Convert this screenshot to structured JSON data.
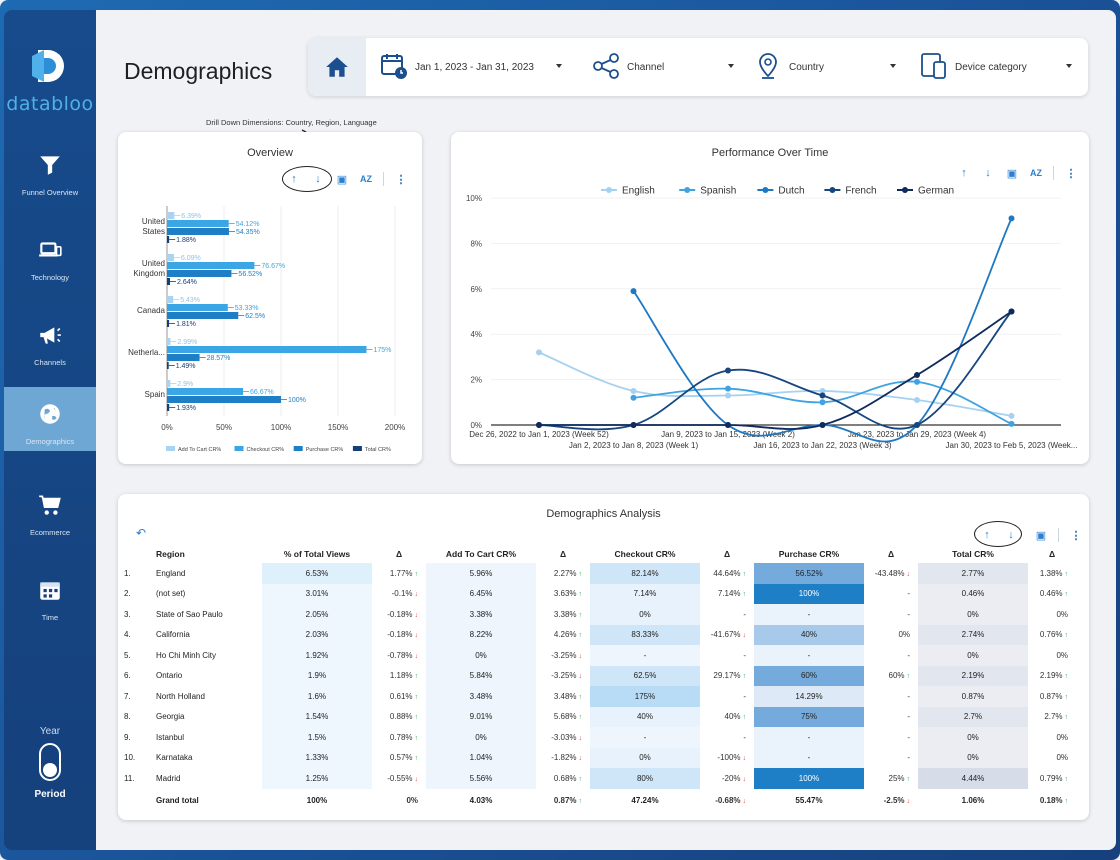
{
  "brand": {
    "name": "databloo",
    "accent": "#4fb0ea"
  },
  "sidebar": {
    "items": [
      {
        "label": "Funnel Overview",
        "icon": "funnel-icon"
      },
      {
        "label": "Technology",
        "icon": "laptop-icon"
      },
      {
        "label": "Channels",
        "icon": "megaphone-icon"
      },
      {
        "label": "Demographics",
        "icon": "globe-icon",
        "active": true
      },
      {
        "label": "Ecommerce",
        "icon": "cart-icon"
      },
      {
        "label": "Time",
        "icon": "calendar-icon"
      }
    ],
    "year_label": "Year",
    "period_label": "Period"
  },
  "header": {
    "title": "Demographics"
  },
  "filters": {
    "date": "Jan 1, 2023 - Jan 31, 2023",
    "channel": "Channel",
    "country": "Country",
    "device": "Device category"
  },
  "overview": {
    "title": "Overview",
    "note": "Drill Down Dimensions: Country, Region, Language"
  },
  "performance": {
    "title": "Performance Over Time"
  },
  "analysis": {
    "title": "Demographics Analysis",
    "columns": [
      "Region",
      "% of Total Views",
      "Δ",
      "Add To Cart CR%",
      "Δ",
      "Checkout CR%",
      "Δ",
      "Purchase CR%",
      "Δ",
      "Total CR%",
      "Δ"
    ],
    "rows": [
      {
        "n": "1.",
        "region": "England",
        "views": "6.53%",
        "d1": "1.77%",
        "d1s": "up",
        "atc": "5.96%",
        "d2": "2.27%",
        "d2s": "up",
        "co": "82.14%",
        "d3": "44.64%",
        "d3s": "up",
        "pu": "56.52%",
        "d4": "-43.48%",
        "d4s": "down",
        "tot": "2.77%",
        "d5": "1.38%",
        "d5s": "up"
      },
      {
        "n": "2.",
        "region": "(not set)",
        "views": "3.01%",
        "d1": "-0.1%",
        "d1s": "down",
        "atc": "6.45%",
        "d2": "3.63%",
        "d2s": "up",
        "co": "7.14%",
        "d3": "7.14%",
        "d3s": "up",
        "pu": "100%",
        "d4": "-",
        "d4s": "",
        "tot": "0.46%",
        "d5": "0.46%",
        "d5s": "up"
      },
      {
        "n": "3.",
        "region": "State of Sao Paulo",
        "views": "2.05%",
        "d1": "-0.18%",
        "d1s": "down",
        "atc": "3.38%",
        "d2": "3.38%",
        "d2s": "up",
        "co": "0%",
        "d3": "-",
        "d3s": "",
        "pu": "-",
        "d4": "-",
        "d4s": "",
        "tot": "0%",
        "d5": "0%",
        "d5s": ""
      },
      {
        "n": "4.",
        "region": "California",
        "views": "2.03%",
        "d1": "-0.18%",
        "d1s": "down",
        "atc": "8.22%",
        "d2": "4.26%",
        "d2s": "up",
        "co": "83.33%",
        "d3": "-41.67%",
        "d3s": "down",
        "pu": "40%",
        "d4": "0%",
        "d4s": "",
        "tot": "2.74%",
        "d5": "0.76%",
        "d5s": "up"
      },
      {
        "n": "5.",
        "region": "Ho Chi Minh City",
        "views": "1.92%",
        "d1": "-0.78%",
        "d1s": "down",
        "atc": "0%",
        "d2": "-3.25%",
        "d2s": "down",
        "co": "-",
        "d3": "-",
        "d3s": "",
        "pu": "-",
        "d4": "-",
        "d4s": "",
        "tot": "0%",
        "d5": "0%",
        "d5s": ""
      },
      {
        "n": "6.",
        "region": "Ontario",
        "views": "1.9%",
        "d1": "1.18%",
        "d1s": "up",
        "atc": "5.84%",
        "d2": "-3.25%",
        "d2s": "down",
        "co": "62.5%",
        "d3": "29.17%",
        "d3s": "up",
        "pu": "60%",
        "d4": "60%",
        "d4s": "up",
        "tot": "2.19%",
        "d5": "2.19%",
        "d5s": "up"
      },
      {
        "n": "7.",
        "region": "North Holland",
        "views": "1.6%",
        "d1": "0.61%",
        "d1s": "up",
        "atc": "3.48%",
        "d2": "3.48%",
        "d2s": "up",
        "co": "175%",
        "d3": "-",
        "d3s": "",
        "pu": "14.29%",
        "d4": "-",
        "d4s": "",
        "tot": "0.87%",
        "d5": "0.87%",
        "d5s": "up"
      },
      {
        "n": "8.",
        "region": "Georgia",
        "views": "1.54%",
        "d1": "0.88%",
        "d1s": "up",
        "atc": "9.01%",
        "d2": "5.68%",
        "d2s": "up",
        "co": "40%",
        "d3": "40%",
        "d3s": "up",
        "pu": "75%",
        "d4": "-",
        "d4s": "",
        "tot": "2.7%",
        "d5": "2.7%",
        "d5s": "up"
      },
      {
        "n": "9.",
        "region": "Istanbul",
        "views": "1.5%",
        "d1": "0.78%",
        "d1s": "up",
        "atc": "0%",
        "d2": "-3.03%",
        "d2s": "down",
        "co": "-",
        "d3": "-",
        "d3s": "",
        "pu": "-",
        "d4": "-",
        "d4s": "",
        "tot": "0%",
        "d5": "0%",
        "d5s": ""
      },
      {
        "n": "10.",
        "region": "Karnataka",
        "views": "1.33%",
        "d1": "0.57%",
        "d1s": "up",
        "atc": "1.04%",
        "d2": "-1.82%",
        "d2s": "down",
        "co": "0%",
        "d3": "-100%",
        "d3s": "down",
        "pu": "-",
        "d4": "-",
        "d4s": "",
        "tot": "0%",
        "d5": "0%",
        "d5s": ""
      },
      {
        "n": "11.",
        "region": "Madrid",
        "views": "1.25%",
        "d1": "-0.55%",
        "d1s": "down",
        "atc": "5.56%",
        "d2": "0.68%",
        "d2s": "up",
        "co": "80%",
        "d3": "-20%",
        "d3s": "down",
        "pu": "100%",
        "d4": "25%",
        "d4s": "up",
        "tot": "4.44%",
        "d5": "0.79%",
        "d5s": "up"
      }
    ],
    "grand_total": {
      "label": "Grand total",
      "views": "100%",
      "d1": "0%",
      "atc": "4.03%",
      "d2": "0.87%",
      "d2s": "up",
      "co": "47.24%",
      "d3": "-0.68%",
      "d3s": "down",
      "pu": "55.47%",
      "d4": "-2.5%",
      "d4s": "down",
      "tot": "1.06%",
      "d5": "0.18%",
      "d5s": "up"
    }
  },
  "chart_data": [
    {
      "type": "bar",
      "orientation": "horizontal",
      "categories": [
        "United States",
        "United Kingdom",
        "Canada",
        "Netherla...",
        "Spain"
      ],
      "category_labels": [
        [
          "United",
          "States"
        ],
        [
          "United",
          "Kingdom"
        ],
        [
          "Canada"
        ],
        [
          "Netherla..."
        ],
        [
          "Spain"
        ]
      ],
      "series": [
        {
          "name": "Add To Cart CR%",
          "color": "#a9d3f2",
          "values": [
            6.39,
            6.09,
            5.43,
            2.99,
            2.9
          ],
          "labels": [
            "6.39%",
            "6.09%",
            "5.43%",
            "2.99%",
            "2.9%"
          ]
        },
        {
          "name": "Checkout CR%",
          "color": "#3aa6e6",
          "values": [
            54.12,
            76.67,
            53.33,
            175,
            66.67
          ],
          "labels": [
            "54.12%",
            "76.67%",
            "53.33%",
            "175%",
            "66.67%"
          ]
        },
        {
          "name": "Purchase CR%",
          "color": "#1f7fc6",
          "values": [
            54.35,
            56.52,
            62.5,
            28.57,
            100
          ],
          "labels": [
            "54.35%",
            "56.52%",
            "62.5%",
            "28.57%",
            "100%"
          ]
        },
        {
          "name": "Total CR%",
          "color": "#163e78",
          "values": [
            1.88,
            2.64,
            1.81,
            1.49,
            1.93
          ],
          "labels": [
            "1.88%",
            "2.64%",
            "1.81%",
            "1.49%",
            "1.93%"
          ]
        }
      ],
      "xlim": [
        0,
        200
      ],
      "xticks": [
        "0%",
        "50%",
        "100%",
        "150%",
        "200%"
      ],
      "legend": "bottom"
    },
    {
      "type": "line",
      "title": "Performance Over Time",
      "x": [
        "Dec 26, 2022 to Jan 1, 2023 (Week 52)",
        "Jan 2, 2023 to Jan 8, 2023 (Week 1)",
        "Jan 9, 2023 to Jan 15, 2023 (Week 2)",
        "Jan 16, 2023 to Jan 22, 2023 (Week 3)",
        "Jan 23, 2023 to Jan 29, 2023 (Week 4)",
        "Jan 30, 2023 to Feb 5, 2023 (Week..."
      ],
      "series": [
        {
          "name": "English",
          "color": "#a6d1f1",
          "values": [
            3.2,
            1.5,
            1.3,
            1.5,
            1.1,
            0.4
          ]
        },
        {
          "name": "Spanish",
          "color": "#3ea3e2",
          "values": [
            null,
            1.2,
            1.6,
            1.0,
            1.9,
            0.05
          ]
        },
        {
          "name": "Dutch",
          "color": "#1e78c2",
          "values": [
            null,
            5.9,
            0,
            0,
            0,
            9.1
          ]
        },
        {
          "name": "French",
          "color": "#17467f",
          "values": [
            0,
            0,
            2.4,
            1.3,
            0,
            5.0
          ]
        },
        {
          "name": "German",
          "color": "#0f2a5c",
          "values": [
            0,
            0,
            0,
            0,
            2.2,
            5.0
          ]
        }
      ],
      "ylim": [
        0,
        10
      ],
      "yticks": [
        "0%",
        "2%",
        "4%",
        "6%",
        "8%",
        "10%"
      ],
      "grid": true,
      "legend": "top"
    }
  ]
}
